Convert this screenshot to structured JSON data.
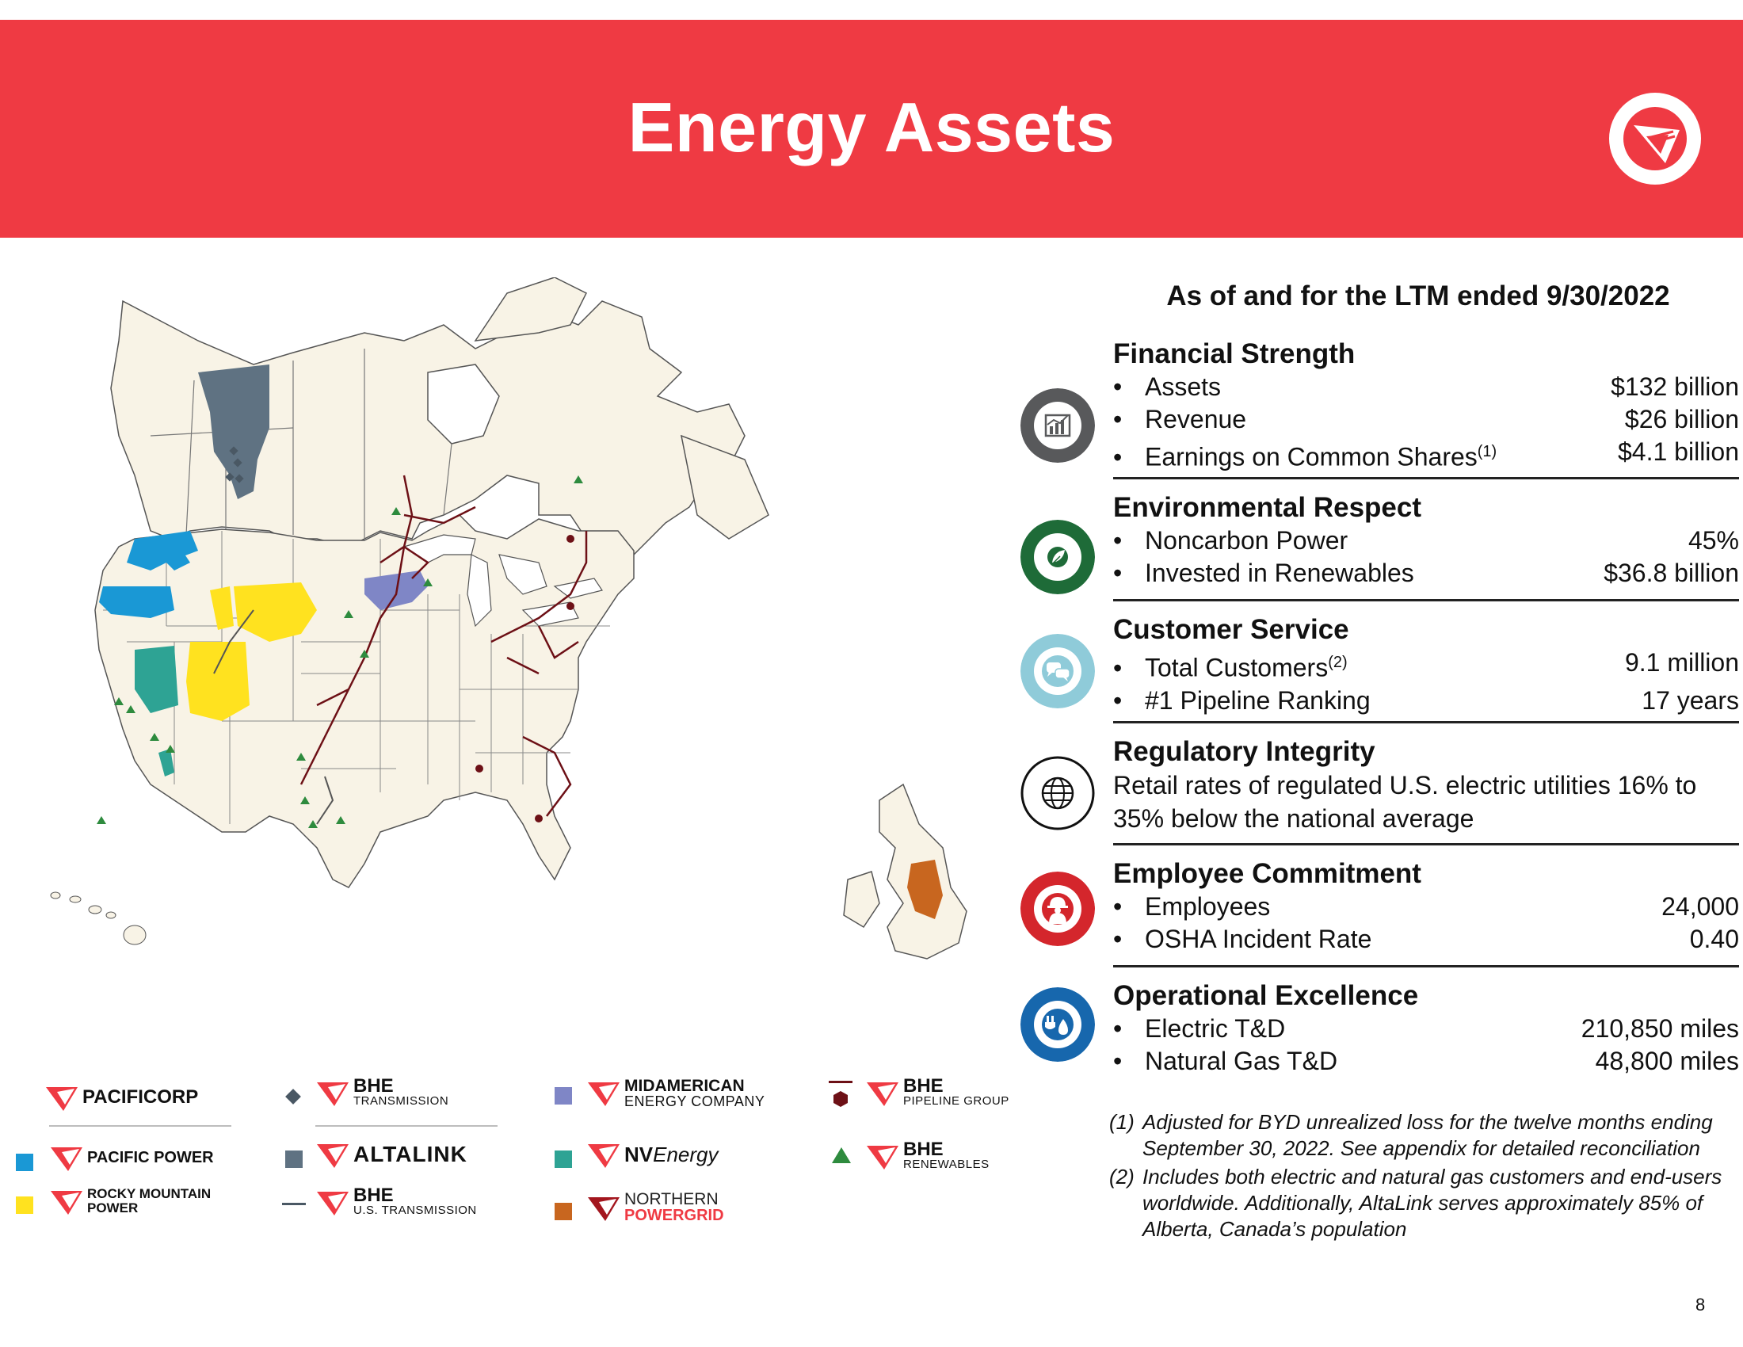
{
  "header": {
    "title": "Energy Assets",
    "bg_color": "#ef3a43"
  },
  "stats": {
    "heading": "As of and for the LTM ended 9/30/2022",
    "financial": {
      "title": "Financial Strength",
      "icon": "chart-icon",
      "rows": [
        {
          "label": "Assets",
          "value": "$132 billion"
        },
        {
          "label": "Revenue",
          "value": "$26 billion"
        },
        {
          "label": "Earnings on Common Shares",
          "sup": "(1)",
          "value": "$4.1 billion"
        }
      ]
    },
    "environmental": {
      "title": "Environmental Respect",
      "icon": "leaf-icon",
      "rows": [
        {
          "label": "Noncarbon Power",
          "value": "45%"
        },
        {
          "label": "Invested in Renewables",
          "value": "$36.8 billion"
        }
      ]
    },
    "customer": {
      "title": "Customer Service",
      "icon": "chat-bubbles-icon",
      "rows": [
        {
          "label": "Total Customers",
          "sup": "(2)",
          "value": "9.1 million"
        },
        {
          "label": "#1 Pipeline Ranking",
          "value": "17 years"
        }
      ]
    },
    "regulatory": {
      "title": "Regulatory Integrity",
      "icon": "globe-icon",
      "text": "Retail rates of regulated U.S. electric utilities 16% to 35% below the national average"
    },
    "employee": {
      "title": "Employee Commitment",
      "icon": "worker-icon",
      "rows": [
        {
          "label": "Employees",
          "value": "24,000"
        },
        {
          "label": "OSHA Incident Rate",
          "value": "0.40"
        }
      ]
    },
    "operational": {
      "title": "Operational Excellence",
      "icon": "plug-drop-icon",
      "rows": [
        {
          "label": "Electric T&D",
          "value": "210,850 miles"
        },
        {
          "label": "Natural Gas T&D",
          "value": "48,800 miles"
        }
      ]
    }
  },
  "bullet": "•",
  "footnotes": [
    {
      "num": "(1)",
      "text": "Adjusted for BYD unrealized loss for the twelve months ending September 30, 2022. See appendix for detailed reconciliation"
    },
    {
      "num": "(2)",
      "text": "Includes both electric and natural gas customers and end-users worldwide. Additionally, AltaLink serves approximately 85% of Alberta, Canada’s population"
    }
  ],
  "legend": {
    "pacificorp": "PACIFICORP",
    "pacific_power": "PACIFIC POWER",
    "rocky_1": "ROCKY MOUNTAIN",
    "rocky_2": "POWER",
    "bhe": "BHE",
    "transmission": "TRANSMISSION",
    "altalink": "ALTALINK",
    "us_transmission": "U.S. TRANSMISSION",
    "midamerican_1": "MIDAMERICAN",
    "midamerican_2": "ENERGY COMPANY",
    "nv_1": "NV",
    "nv_2": "Energy",
    "northern_1": "NORTHERN",
    "northern_2": "POWERGRID",
    "pipeline": "PIPELINE GROUP",
    "renewables": "RENEWABLES"
  },
  "colors": {
    "pacific_power": "#1a98d5",
    "rocky_mountain": "#ffe21f",
    "altalink": "#5f7282",
    "midamerican": "#7f86c6",
    "nv_energy": "#2ea394",
    "northern_powergrid": "#c8661f",
    "pipeline": "#6d1016",
    "renewables": "#2e8b3e",
    "land": "#f8f3e6"
  },
  "page_number": "8"
}
